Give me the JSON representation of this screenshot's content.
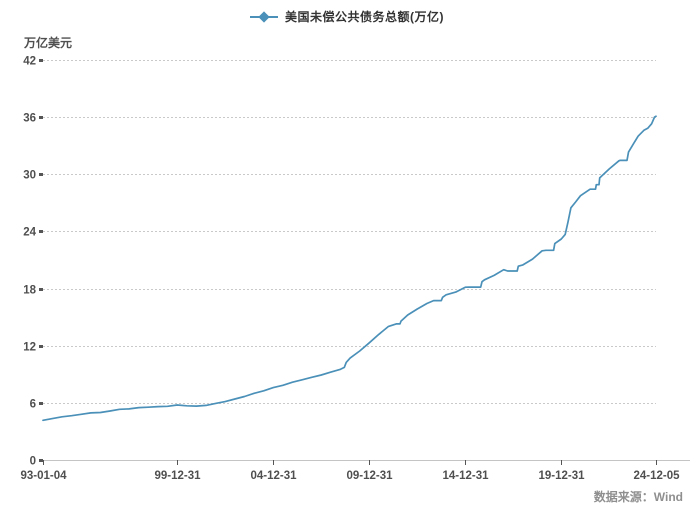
{
  "legend": {
    "label": "美国未偿公共债务总额(万亿)"
  },
  "y_axis": {
    "unit": "万亿美元"
  },
  "source": {
    "label": "数据来源：Wind"
  },
  "colors": {
    "line": "#4a90b8",
    "grid": "#c9c9c9",
    "axis": "#c4c4c4",
    "tick": "#555555",
    "text": "#4f4f4f",
    "source_text": "#8f8f8f"
  },
  "chart_data": {
    "type": "line",
    "title": "",
    "xlabel": "",
    "ylabel": "万亿美元",
    "ylim": [
      0,
      42
    ],
    "xlim": [
      1993.01,
      2024.93
    ],
    "grid": true,
    "legend_position": "top",
    "y_ticks": [
      0,
      6,
      12,
      18,
      24,
      30,
      36,
      42
    ],
    "x_ticks": [
      {
        "label": "93-01-04",
        "t": 1993.01
      },
      {
        "label": "99-12-31",
        "t": 2000.0
      },
      {
        "label": "04-12-31",
        "t": 2005.0
      },
      {
        "label": "09-12-31",
        "t": 2010.0
      },
      {
        "label": "14-12-31",
        "t": 2015.0
      },
      {
        "label": "19-12-31",
        "t": 2020.0
      },
      {
        "label": "24-12-05",
        "t": 2024.93
      }
    ],
    "series": [
      {
        "name": "美国未偿公共债务总额(万亿)",
        "color": "#4a90b8",
        "points": [
          [
            1993.01,
            4.17
          ],
          [
            1993.5,
            4.35
          ],
          [
            1994.0,
            4.54
          ],
          [
            1994.5,
            4.65
          ],
          [
            1995.0,
            4.8
          ],
          [
            1995.5,
            4.95
          ],
          [
            1996.0,
            4.99
          ],
          [
            1996.5,
            5.15
          ],
          [
            1997.0,
            5.32
          ],
          [
            1997.5,
            5.37
          ],
          [
            1998.0,
            5.5
          ],
          [
            1998.5,
            5.54
          ],
          [
            1999.0,
            5.61
          ],
          [
            1999.5,
            5.64
          ],
          [
            2000.0,
            5.78
          ],
          [
            2000.5,
            5.69
          ],
          [
            2001.0,
            5.66
          ],
          [
            2001.5,
            5.73
          ],
          [
            2002.0,
            5.94
          ],
          [
            2002.5,
            6.13
          ],
          [
            2003.0,
            6.4
          ],
          [
            2003.5,
            6.67
          ],
          [
            2004.0,
            7.0
          ],
          [
            2004.5,
            7.27
          ],
          [
            2005.0,
            7.6
          ],
          [
            2005.5,
            7.84
          ],
          [
            2006.0,
            8.17
          ],
          [
            2006.5,
            8.42
          ],
          [
            2007.0,
            8.68
          ],
          [
            2007.5,
            8.93
          ],
          [
            2008.0,
            9.23
          ],
          [
            2008.5,
            9.52
          ],
          [
            2008.7,
            9.72
          ],
          [
            2008.8,
            10.25
          ],
          [
            2009.0,
            10.7
          ],
          [
            2009.5,
            11.45
          ],
          [
            2010.0,
            12.31
          ],
          [
            2010.5,
            13.2
          ],
          [
            2011.0,
            14.03
          ],
          [
            2011.4,
            14.29
          ],
          [
            2011.6,
            14.29
          ],
          [
            2011.65,
            14.58
          ],
          [
            2012.0,
            15.22
          ],
          [
            2012.5,
            15.86
          ],
          [
            2013.0,
            16.43
          ],
          [
            2013.35,
            16.74
          ],
          [
            2013.75,
            16.74
          ],
          [
            2013.82,
            17.08
          ],
          [
            2014.0,
            17.35
          ],
          [
            2014.5,
            17.63
          ],
          [
            2015.0,
            18.14
          ],
          [
            2015.2,
            18.15
          ],
          [
            2015.8,
            18.15
          ],
          [
            2015.87,
            18.72
          ],
          [
            2016.0,
            18.92
          ],
          [
            2016.5,
            19.38
          ],
          [
            2017.0,
            19.98
          ],
          [
            2017.2,
            19.85
          ],
          [
            2017.7,
            19.85
          ],
          [
            2017.76,
            20.35
          ],
          [
            2018.0,
            20.49
          ],
          [
            2018.5,
            21.09
          ],
          [
            2019.0,
            21.97
          ],
          [
            2019.2,
            22.02
          ],
          [
            2019.6,
            22.02
          ],
          [
            2019.66,
            22.72
          ],
          [
            2020.0,
            23.2
          ],
          [
            2020.2,
            23.69
          ],
          [
            2020.35,
            25.0
          ],
          [
            2020.5,
            26.48
          ],
          [
            2020.75,
            27.1
          ],
          [
            2021.0,
            27.75
          ],
          [
            2021.5,
            28.43
          ],
          [
            2021.78,
            28.43
          ],
          [
            2021.82,
            28.91
          ],
          [
            2021.96,
            28.91
          ],
          [
            2022.0,
            29.62
          ],
          [
            2022.5,
            30.57
          ],
          [
            2023.0,
            31.42
          ],
          [
            2023.05,
            31.46
          ],
          [
            2023.42,
            31.46
          ],
          [
            2023.5,
            32.33
          ],
          [
            2023.75,
            33.17
          ],
          [
            2024.0,
            34.0
          ],
          [
            2024.3,
            34.62
          ],
          [
            2024.5,
            34.83
          ],
          [
            2024.7,
            35.3
          ],
          [
            2024.85,
            36.0
          ],
          [
            2024.93,
            36.09
          ]
        ]
      }
    ]
  }
}
